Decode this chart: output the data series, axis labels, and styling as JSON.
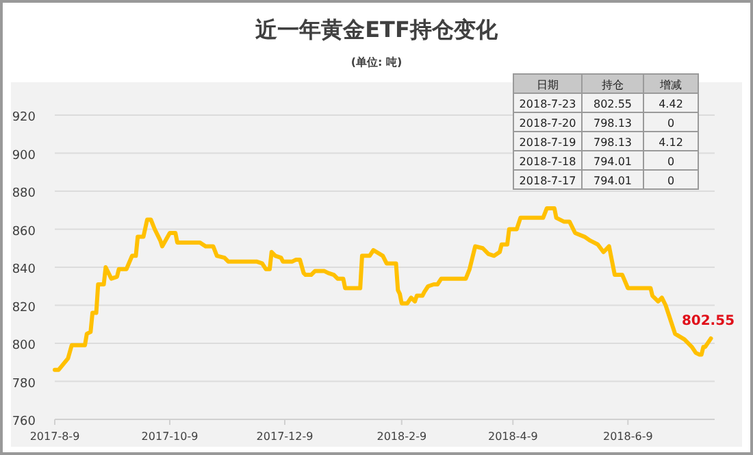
{
  "chart_data": [
    {
      "type": "line",
      "title": "近一年黄金ETF持仓变化",
      "subtitle": "(单位: 吨)",
      "color": "#ffc000",
      "grid": "y",
      "marker": "none",
      "line_style": "solid",
      "xlim": [
        "2017-08-09",
        "2018-07-25"
      ],
      "ylim": [
        760,
        920
      ],
      "yticks": [
        760,
        780,
        800,
        820,
        840,
        860,
        880,
        900,
        920
      ],
      "xticks": [
        {
          "value": "2017-08-09",
          "label": "2017-8-9"
        },
        {
          "value": "2017-10-09",
          "label": "2017-10-9"
        },
        {
          "value": "2017-12-09",
          "label": "2017-12-9"
        },
        {
          "value": "2018-02-09",
          "label": "2018-2-9"
        },
        {
          "value": "2018-04-09",
          "label": "2018-4-9"
        },
        {
          "value": "2018-06-09",
          "label": "2018-6-9"
        }
      ],
      "annotations": [
        {
          "text": "802.55",
          "x": "2018-07-23",
          "y": 802.55
        }
      ],
      "x": [
        "2017-08-09",
        "2017-08-11",
        "2017-08-16",
        "2017-08-18",
        "2017-08-25",
        "2017-08-26",
        "2017-08-28",
        "2017-08-29",
        "2017-08-31",
        "2017-09-01",
        "2017-09-04",
        "2017-09-05",
        "2017-09-08",
        "2017-09-11",
        "2017-09-12",
        "2017-09-16",
        "2017-09-19",
        "2017-09-21",
        "2017-09-22",
        "2017-09-25",
        "2017-09-27",
        "2017-09-29",
        "2017-10-01",
        "2017-10-04",
        "2017-10-05",
        "2017-10-09",
        "2017-10-12",
        "2017-10-13",
        "2017-10-25",
        "2017-10-28",
        "2017-11-01",
        "2017-11-03",
        "2017-11-07",
        "2017-11-09",
        "2017-11-24",
        "2017-11-27",
        "2017-11-29",
        "2017-12-01",
        "2017-12-02",
        "2017-12-04",
        "2017-12-07",
        "2017-12-08",
        "2017-12-13",
        "2017-12-15",
        "2017-12-17",
        "2017-12-19",
        "2017-12-20",
        "2017-12-23",
        "2017-12-25",
        "2017-12-30",
        "2018-01-01",
        "2018-01-04",
        "2018-01-06",
        "2018-01-09",
        "2018-01-10",
        "2018-01-18",
        "2018-01-19",
        "2018-01-23",
        "2018-01-25",
        "2018-01-30",
        "2018-02-01",
        "2018-02-06",
        "2018-02-07",
        "2018-02-08",
        "2018-02-09",
        "2018-02-12",
        "2018-02-14",
        "2018-02-16",
        "2018-02-17",
        "2018-02-20",
        "2018-02-21",
        "2018-02-23",
        "2018-02-26",
        "2018-02-28",
        "2018-03-02",
        "2018-03-15",
        "2018-03-17",
        "2018-03-20",
        "2018-03-24",
        "2018-03-27",
        "2018-03-30",
        "2018-04-02",
        "2018-04-03",
        "2018-04-06",
        "2018-04-07",
        "2018-04-11",
        "2018-04-13",
        "2018-04-25",
        "2018-04-27",
        "2018-05-01",
        "2018-05-02",
        "2018-05-06",
        "2018-05-09",
        "2018-05-12",
        "2018-05-17",
        "2018-05-20",
        "2018-05-24",
        "2018-05-27",
        "2018-05-28",
        "2018-05-30",
        "2018-06-02",
        "2018-06-06",
        "2018-06-09",
        "2018-06-21",
        "2018-06-22",
        "2018-06-25",
        "2018-06-27",
        "2018-06-29",
        "2018-07-02",
        "2018-07-04",
        "2018-07-09",
        "2018-07-13",
        "2018-07-15",
        "2018-07-17",
        "2018-07-18",
        "2018-07-19",
        "2018-07-20",
        "2018-07-23"
      ],
      "values": [
        786,
        786,
        792,
        799,
        799,
        805,
        806,
        816,
        816,
        831,
        831,
        840,
        834,
        835,
        839,
        839,
        846,
        846,
        856,
        856,
        865,
        865,
        860,
        854,
        851,
        858,
        858,
        853,
        853,
        851,
        851,
        846,
        845,
        843,
        843,
        842,
        839,
        839,
        848,
        846,
        845,
        843,
        843,
        844,
        844,
        837,
        836,
        836,
        838,
        838,
        837,
        836,
        834,
        834,
        829,
        829,
        846,
        846,
        849,
        846,
        842,
        842,
        828,
        826,
        821,
        821,
        824,
        822,
        825,
        825,
        827,
        830,
        831,
        831,
        834,
        834,
        839,
        851,
        850,
        847,
        846,
        848,
        852,
        852,
        860,
        860,
        866,
        866,
        871,
        871,
        866,
        864,
        864,
        858,
        856,
        854,
        852,
        848,
        849,
        851,
        836,
        836,
        829,
        829,
        825,
        822,
        824,
        820,
        811,
        805,
        802,
        798,
        795,
        794.01,
        794.01,
        798.13,
        798.13,
        802.55
      ]
    },
    {
      "type": "other",
      "annotations": [
        "日期",
        "持仓",
        "增减",
        "2018-7-23",
        "802.55",
        "4.42",
        "2018-7-20",
        "798.13",
        "0",
        "2018-7-19",
        "798.13",
        "4.12",
        "2018-7-18",
        "794.01",
        "0",
        "2018-7-17",
        "794.01",
        "0"
      ]
    }
  ]
}
